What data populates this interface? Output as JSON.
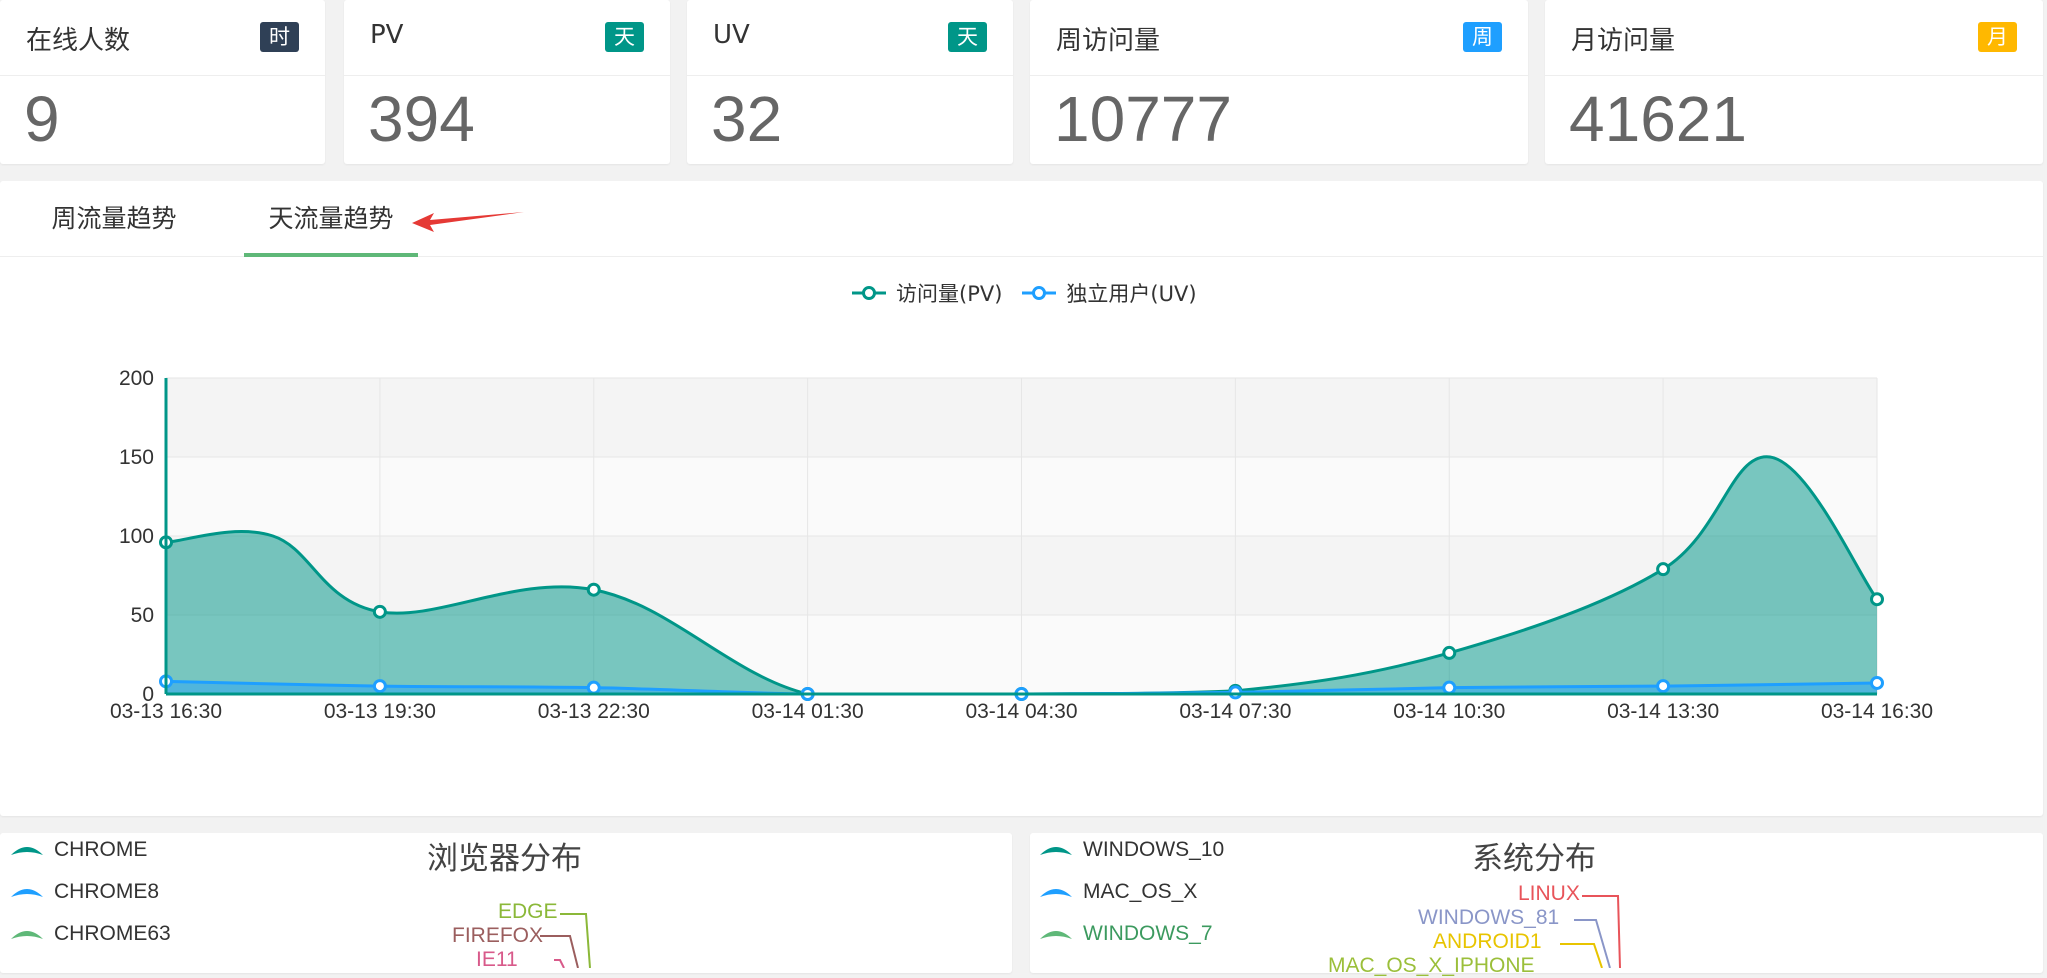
{
  "stats": [
    {
      "title": "在线人数",
      "badge": "时",
      "badge_color": "#2f4056",
      "value": "9"
    },
    {
      "title": "PV",
      "badge": "天",
      "badge_color": "#009688",
      "value": "394"
    },
    {
      "title": "UV",
      "badge": "天",
      "badge_color": "#009688",
      "value": "32"
    },
    {
      "title": "周访问量",
      "badge": "周",
      "badge_color": "#1e9fff",
      "value": "10777"
    },
    {
      "title": "月访问量",
      "badge": "月",
      "badge_color": "#ffb800",
      "value": "41621"
    }
  ],
  "tabs": [
    {
      "label": "周流量趋势",
      "active": false
    },
    {
      "label": "天流量趋势",
      "active": true
    }
  ],
  "chart_data": {
    "type": "area",
    "x": [
      "03-13 16:30",
      "03-13 19:30",
      "03-13 22:30",
      "03-14 01:30",
      "03-14 04:30",
      "03-14 07:30",
      "03-14 10:30",
      "03-14 13:30",
      "03-14 16:30"
    ],
    "series": [
      {
        "name": "访问量(PV)",
        "color": "#009688",
        "values": [
          96,
          52,
          66,
          0,
          0,
          2,
          26,
          79,
          60
        ],
        "peaks": [
          {
            "after_index": 0,
            "value": 100
          },
          {
            "after_index": 7,
            "value": 150
          }
        ]
      },
      {
        "name": "独立用户(UV)",
        "color": "#1e9fff",
        "values": [
          8,
          5,
          4,
          0,
          0,
          1,
          4,
          5,
          7
        ]
      }
    ],
    "yticks": [
      "0",
      "50",
      "100",
      "150",
      "200"
    ],
    "ylim": [
      0,
      200
    ],
    "legend_position": "top-center",
    "grid": true
  },
  "browser_panel": {
    "title": "浏览器分布",
    "legend": [
      {
        "name": "CHROME",
        "color": "#009688"
      },
      {
        "name": "CHROME8",
        "color": "#1e9fff"
      },
      {
        "name": "CHROME63",
        "color": "#5fb878"
      }
    ],
    "labels": [
      {
        "name": "EDGE",
        "color": "#8bb839"
      },
      {
        "name": "FIREFOX",
        "color": "#9b5e5e"
      },
      {
        "name": "IE11",
        "color": "#d85a8a"
      }
    ]
  },
  "os_panel": {
    "title": "系统分布",
    "legend": [
      {
        "name": "WINDOWS_10",
        "color": "#009688"
      },
      {
        "name": "MAC_OS_X",
        "color": "#1e9fff"
      },
      {
        "name": "WINDOWS_7",
        "color": "#5fb878"
      }
    ],
    "labels": [
      {
        "name": "LINUX",
        "color": "#e8545a"
      },
      {
        "name": "WINDOWS_81",
        "color": "#8a96c8"
      },
      {
        "name": "ANDROID1",
        "color": "#e8c400"
      },
      {
        "name": "MAC_OS_X_IPHONE",
        "color": "#9bbf3a"
      }
    ]
  }
}
